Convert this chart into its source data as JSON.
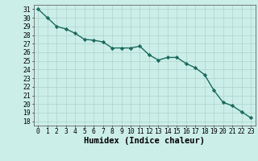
{
  "x": [
    0,
    1,
    2,
    3,
    4,
    5,
    6,
    7,
    8,
    9,
    10,
    11,
    12,
    13,
    14,
    15,
    16,
    17,
    18,
    19,
    20,
    21,
    22,
    23
  ],
  "y": [
    31,
    30,
    29,
    28.7,
    28.2,
    27.5,
    27.4,
    27.2,
    26.5,
    26.5,
    26.5,
    26.7,
    25.7,
    25.1,
    25.4,
    25.4,
    24.7,
    24.2,
    23.4,
    21.6,
    20.2,
    19.8,
    19.1,
    18.4
  ],
  "line_color": "#1a6b5e",
  "marker": "D",
  "marker_size": 2.2,
  "bg_color": "#cceee8",
  "grid_color": "#aad4cc",
  "xlabel": "Humidex (Indice chaleur)",
  "xlim": [
    -0.5,
    23.5
  ],
  "ylim": [
    17.5,
    31.5
  ],
  "yticks": [
    18,
    19,
    20,
    21,
    22,
    23,
    24,
    25,
    26,
    27,
    28,
    29,
    30,
    31
  ],
  "xticks": [
    0,
    1,
    2,
    3,
    4,
    5,
    6,
    7,
    8,
    9,
    10,
    11,
    12,
    13,
    14,
    15,
    16,
    17,
    18,
    19,
    20,
    21,
    22,
    23
  ],
  "tick_fontsize": 5.8,
  "xlabel_fontsize": 7.5,
  "line_width": 1.0
}
